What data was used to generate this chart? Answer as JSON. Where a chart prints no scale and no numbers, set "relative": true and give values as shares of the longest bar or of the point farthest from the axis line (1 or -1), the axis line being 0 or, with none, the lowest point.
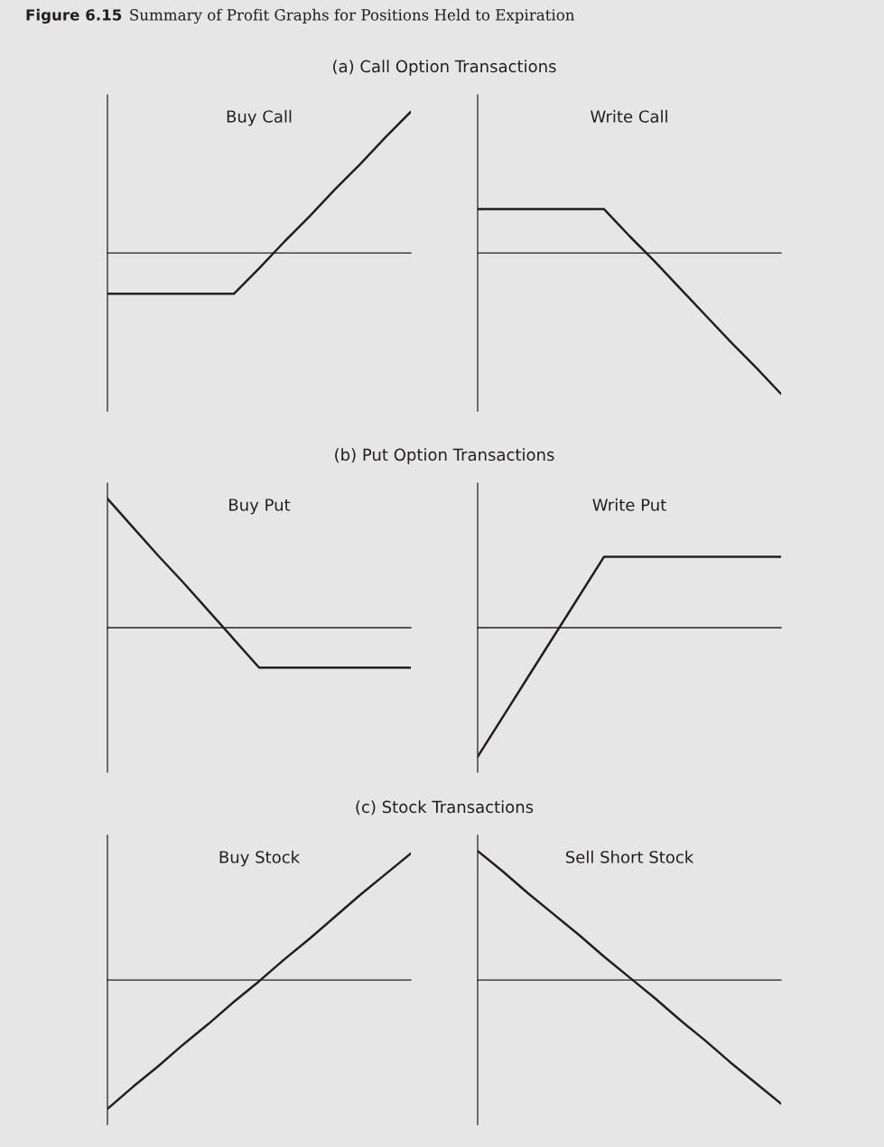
{
  "chart_data": [
    {
      "type": "line",
      "title": "Buy Call",
      "relative": true,
      "tick_labels": false,
      "annotations": [
        "Figure 6.15",
        "Summary of Profit Graphs for Positions Held to Expiration",
        "(a) Call Option Transactions"
      ],
      "categories": [
        null,
        null,
        null,
        null,
        null,
        null,
        null,
        null,
        null,
        null,
        null,
        null,
        null
      ],
      "series": [
        {
          "color": "#231f20",
          "values": [
            -0.29,
            -0.29,
            -0.29,
            -0.29,
            -0.29,
            -0.29,
            -0.11,
            0.08,
            0.26,
            0.45,
            0.63,
            0.82,
            1
          ]
        }
      ]
    },
    {
      "type": "line",
      "title": "Write Call",
      "relative": true,
      "tick_labels": false,
      "categories": [
        null,
        null,
        null,
        null,
        null,
        null,
        null,
        null,
        null,
        null,
        null,
        null,
        null
      ],
      "series": [
        {
          "color": "#231f20",
          "values": [
            0.31,
            0.31,
            0.31,
            0.31,
            0.31,
            0.31,
            0.12,
            -0.06,
            -0.25,
            -0.44,
            -0.63,
            -0.81,
            -1
          ]
        }
      ]
    },
    {
      "type": "line",
      "title": "Buy Put",
      "relative": true,
      "tick_labels": false,
      "annotations": [
        "(b) Put Option Transactions"
      ],
      "categories": [
        null,
        null,
        null,
        null,
        null,
        null,
        null,
        null,
        null,
        null,
        null,
        null,
        null
      ],
      "series": [
        {
          "color": "#231f20",
          "values": [
            1,
            0.78,
            0.56,
            0.35,
            0.13,
            -0.09,
            -0.31,
            -0.31,
            -0.31,
            -0.31,
            -0.31,
            -0.31,
            -0.31
          ]
        }
      ]
    },
    {
      "type": "line",
      "title": "Write Put",
      "relative": true,
      "tick_labels": false,
      "categories": [
        null,
        null,
        null,
        null,
        null,
        null,
        null,
        null,
        null,
        null,
        null,
        null,
        null
      ],
      "series": [
        {
          "color": "#231f20",
          "values": [
            -1,
            -0.69,
            -0.38,
            -0.07,
            0.24,
            0.55,
            0.55,
            0.55,
            0.55,
            0.55,
            0.55,
            0.55,
            0.55
          ]
        }
      ]
    },
    {
      "type": "line",
      "title": "Buy Stock",
      "relative": true,
      "tick_labels": false,
      "annotations": [
        "(c) Stock Transactions"
      ],
      "categories": [
        null,
        null,
        null,
        null,
        null,
        null,
        null,
        null,
        null,
        null,
        null,
        null,
        null
      ],
      "series": [
        {
          "color": "#231f20",
          "values": [
            -1,
            -0.83,
            -0.67,
            -0.5,
            -0.34,
            -0.17,
            -0.01,
            0.16,
            0.32,
            0.49,
            0.66,
            0.82,
            0.98
          ]
        }
      ]
    },
    {
      "type": "line",
      "title": "Sell Short Stock",
      "relative": true,
      "tick_labels": false,
      "categories": [
        null,
        null,
        null,
        null,
        null,
        null,
        null,
        null,
        null,
        null,
        null,
        null,
        null
      ],
      "series": [
        {
          "color": "#231f20",
          "values": [
            1,
            0.84,
            0.67,
            0.51,
            0.35,
            0.18,
            0.02,
            -0.14,
            -0.31,
            -0.47,
            -0.64,
            -0.8,
            -0.96
          ]
        }
      ]
    }
  ]
}
